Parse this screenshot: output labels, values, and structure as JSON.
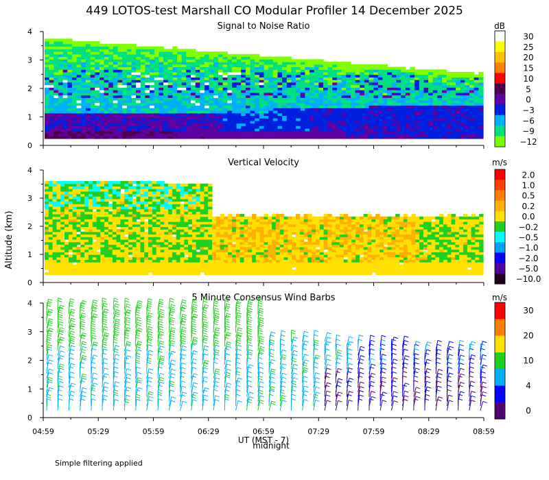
{
  "title": "449 LOTOS-test Marshall CO Modular Profiler 14 December 2025",
  "y_axis_label": "Altitude (km)",
  "x_axis_label": "UT  (MST - 7)",
  "midnight_label": "midnight",
  "footer_note": "Simple filtering applied",
  "x_ticks": [
    "04:59",
    "05:29",
    "05:59",
    "06:29",
    "06:59",
    "07:29",
    "07:59",
    "08:29",
    "08:59"
  ],
  "chart_data": [
    {
      "type": "heatmap",
      "title": "Signal to Noise Ratio",
      "units": "dB",
      "ylim": [
        0,
        4
      ],
      "y_ticks": [
        "0",
        "1",
        "2",
        "3",
        "4"
      ],
      "xlim": [
        "04:59",
        "08:59"
      ],
      "legend_labels": [
        "30",
        "25",
        "20",
        "15",
        "10",
        "5",
        "0",
        "−3",
        "−6",
        "−9",
        "−12"
      ],
      "legend_colors": [
        "#ffffff",
        "#ffff00",
        "#ffc000",
        "#ff8000",
        "#ff0000",
        "#500050",
        "#6000a0",
        "#0020e0",
        "#00b0ff",
        "#00e080",
        "#80ff00"
      ],
      "profile": [
        {
          "alt_km": 0.4,
          "dB": 5
        },
        {
          "alt_km": 0.8,
          "dB": -3
        },
        {
          "alt_km": 1.5,
          "dB": -6
        },
        {
          "alt_km": 2.2,
          "dB": -9
        },
        {
          "alt_km": 3.0,
          "dB": -9
        },
        {
          "alt_km": 3.7,
          "dB": -12
        }
      ]
    },
    {
      "type": "heatmap",
      "title": "Vertical Velocity",
      "units": "m/s",
      "ylim": [
        0,
        4
      ],
      "y_ticks": [
        "0",
        "1",
        "2",
        "3",
        "4"
      ],
      "xlim": [
        "04:59",
        "08:59"
      ],
      "legend_labels": [
        "2.0",
        "1.0",
        "0.5",
        "0.2",
        "0.0",
        "−0.2",
        "−0.5",
        "−1.0",
        "−2.0",
        "−5.0",
        "−10.0"
      ],
      "legend_colors": [
        "#ff0000",
        "#ff4000",
        "#ff8000",
        "#ffb000",
        "#ffe000",
        "#20d020",
        "#00ffff",
        "#00a0ff",
        "#0000ff",
        "#5000a0",
        "#200020"
      ],
      "profile": [
        {
          "alt_km": 0.5,
          "m_s": 0.0
        },
        {
          "alt_km": 1.5,
          "m_s": 0.1
        },
        {
          "alt_km": 2.5,
          "m_s": -0.2
        },
        {
          "alt_km": 3.5,
          "m_s": -0.5
        }
      ]
    },
    {
      "type": "scatter",
      "title": "5 Minute Consensus Wind Barbs",
      "units": "m/s",
      "ylim": [
        0,
        4
      ],
      "y_ticks": [
        "0",
        "1",
        "2",
        "3",
        "4"
      ],
      "xlim": [
        "04:59",
        "08:59"
      ],
      "legend_labels": [
        "30",
        "20",
        "10",
        "4",
        "0"
      ],
      "legend_colors": [
        "#ff0000",
        "#ff8000",
        "#ffe000",
        "#20d020",
        "#00b0ff",
        "#0000ff",
        "#500070"
      ],
      "profile": [
        {
          "alt_km": 0.5,
          "speed_m_s": 5
        },
        {
          "alt_km": 1.5,
          "speed_m_s": 5
        },
        {
          "alt_km": 2.5,
          "speed_m_s": 6
        },
        {
          "alt_km": 3.5,
          "speed_m_s": 7
        }
      ]
    }
  ]
}
